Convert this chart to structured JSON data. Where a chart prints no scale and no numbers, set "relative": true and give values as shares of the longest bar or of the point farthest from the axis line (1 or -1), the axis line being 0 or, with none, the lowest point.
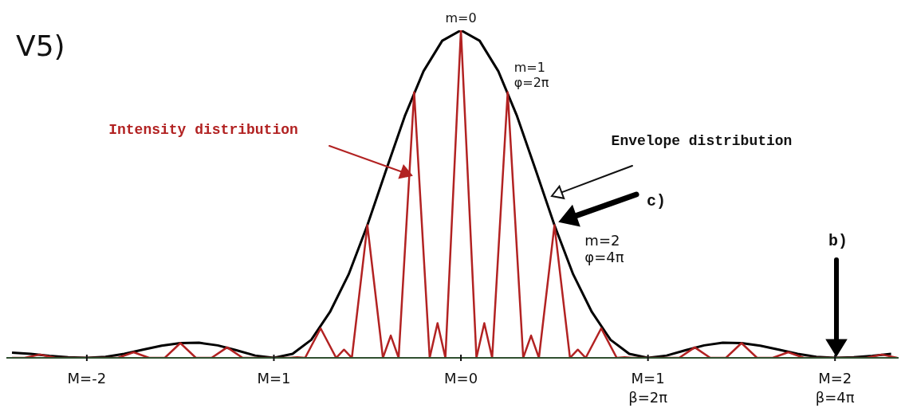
{
  "chart_data": {
    "type": "line",
    "relative": true,
    "xlim": [
      -2.43,
      2.34
    ],
    "xticks": [
      {
        "value": -2,
        "label": "M=-2"
      },
      {
        "value": -1,
        "label": "M=1"
      },
      {
        "value": 0,
        "label": "M=0"
      },
      {
        "value": 1,
        "label": "M=1\nβ=2π"
      },
      {
        "value": 2,
        "label": "M=2\nβ=4π"
      }
    ],
    "grid": false,
    "legend": false,
    "marker": "none",
    "line_style": "solid",
    "series": [
      {
        "color": "#000000",
        "x": [
          -2.4,
          -2.3,
          -2.2,
          -2.1,
          -2.0,
          -1.9,
          -1.8,
          -1.7,
          -1.6,
          -1.5,
          -1.4,
          -1.3,
          -1.2,
          -1.1,
          -1.0,
          -0.9,
          -0.8,
          -0.7,
          -0.6,
          -0.5,
          -0.4,
          -0.3,
          -0.2,
          -0.1,
          0,
          0.1,
          0.2,
          0.3,
          0.4,
          0.5,
          0.6,
          0.7,
          0.8,
          0.9,
          1.0,
          1.1,
          1.2,
          1.3,
          1.4,
          1.5,
          1.6,
          1.7,
          1.8,
          1.9,
          2.0,
          2.1,
          2.2,
          2.3
        ],
        "values": [
          0.016,
          0.012,
          0.006,
          0.002,
          0,
          0.003,
          0.012,
          0.025,
          0.037,
          0.045,
          0.046,
          0.038,
          0.023,
          0.007,
          0,
          0.012,
          0.055,
          0.14,
          0.255,
          0.405,
          0.573,
          0.738,
          0.875,
          0.968,
          1,
          0.968,
          0.875,
          0.738,
          0.573,
          0.405,
          0.255,
          0.14,
          0.055,
          0.012,
          0,
          0.007,
          0.023,
          0.038,
          0.046,
          0.045,
          0.037,
          0.025,
          0.012,
          0.003,
          0,
          0.002,
          0.006,
          0.012
        ]
      },
      {
        "color": "#b22222",
        "x": [
          -2.4,
          -2.333,
          -2.25,
          -2.167,
          -2.0,
          -1.833,
          -1.75,
          -1.667,
          -1.583,
          -1.5,
          -1.417,
          -1.333,
          -1.25,
          -1.167,
          -1.0,
          -0.917,
          -0.875,
          -0.833,
          -0.75,
          -0.667,
          -0.625,
          -0.583,
          -0.5,
          -0.417,
          -0.375,
          -0.333,
          -0.25,
          -0.167,
          -0.125,
          -0.083,
          0,
          0.083,
          0.125,
          0.167,
          0.25,
          0.333,
          0.375,
          0.417,
          0.5,
          0.583,
          0.625,
          0.667,
          0.75,
          0.833,
          0.875,
          0.917,
          1.0,
          1.167,
          1.25,
          1.333,
          1.417,
          1.5,
          1.583,
          1.667,
          1.75,
          1.833,
          2.0,
          2.167,
          2.25,
          2.333
        ],
        "values": [
          0,
          0,
          0.01,
          0,
          0,
          0,
          0.017,
          0,
          0,
          0.045,
          0,
          0,
          0.032,
          0,
          0,
          0,
          0.002,
          0,
          0.09,
          0,
          0.025,
          0,
          0.405,
          0,
          0.068,
          0,
          0.811,
          0,
          0.106,
          0,
          1,
          0,
          0.106,
          0,
          0.811,
          0,
          0.068,
          0,
          0.405,
          0,
          0.025,
          0,
          0.09,
          0,
          0.002,
          0,
          0,
          0,
          0.032,
          0,
          0,
          0.045,
          0,
          0,
          0.017,
          0,
          0,
          0,
          0.01,
          0
        ]
      }
    ],
    "annotations": [
      "V5)",
      {
        "text": "m=0",
        "x": 0,
        "y": 1
      },
      {
        "text": "m=1\nφ=2π",
        "x": 0.25,
        "y": 0.811
      },
      "Intensity distribution",
      "Envelope distribution",
      "c)",
      {
        "text": "m=2\nφ=4π",
        "x": 0.5,
        "y": 0.405
      },
      "b)"
    ]
  }
}
